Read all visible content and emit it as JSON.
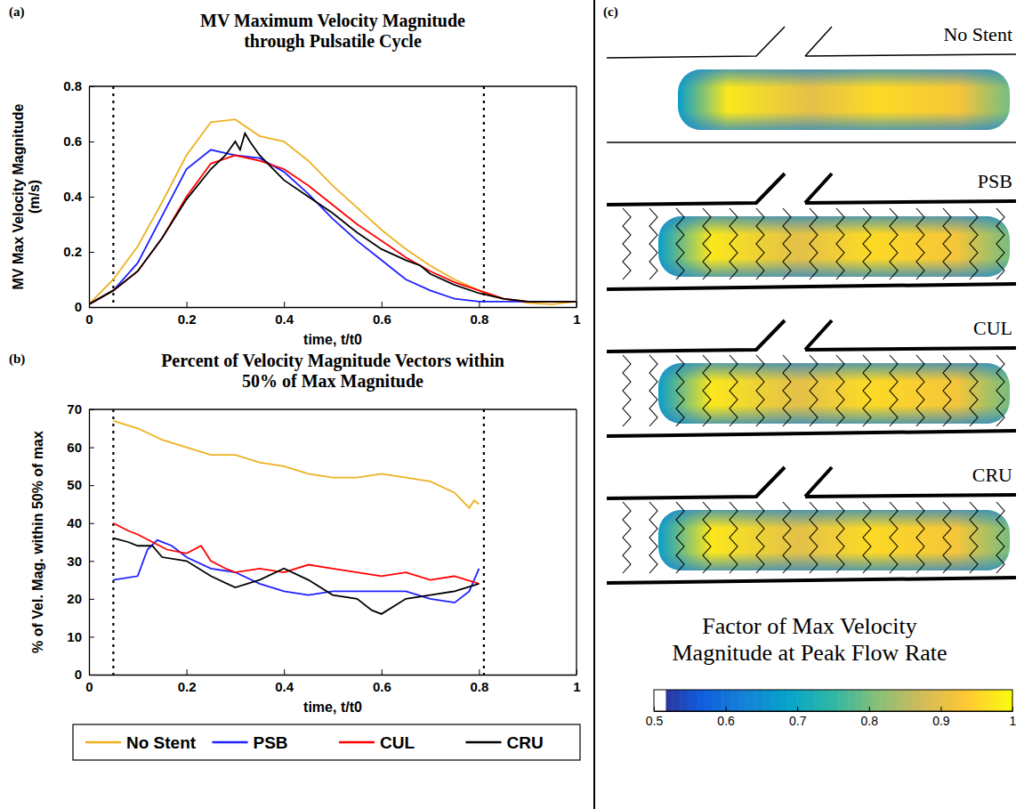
{
  "chart_data": [
    {
      "type": "line",
      "panel_label": "(a)",
      "title": "MV Maximum Velocity Magnitude through Pulsatile Cycle",
      "x_label": "time, t/t0",
      "y_label": "MV Max Velocity Magnitude (m/s)",
      "xlim": [
        0,
        1
      ],
      "xticks": [
        0,
        0.2,
        0.4,
        0.6,
        0.8,
        1
      ],
      "ylim": [
        0,
        0.8
      ],
      "yticks": [
        0,
        0.2,
        0.4,
        0.6,
        0.8
      ],
      "vlines": [
        0.05,
        0.81
      ],
      "legend": "bottom",
      "series": [
        {
          "name": "No Stent",
          "color": "#edb120",
          "x": [
            0,
            0.05,
            0.1,
            0.15,
            0.2,
            0.25,
            0.3,
            0.35,
            0.4,
            0.45,
            0.5,
            0.55,
            0.6,
            0.65,
            0.7,
            0.75,
            0.8,
            0.85,
            0.9,
            0.95,
            1
          ],
          "values": [
            0.01,
            0.1,
            0.22,
            0.38,
            0.55,
            0.67,
            0.68,
            0.62,
            0.6,
            0.53,
            0.44,
            0.36,
            0.28,
            0.21,
            0.15,
            0.1,
            0.06,
            0.03,
            0.015,
            0.01,
            0.02
          ]
        },
        {
          "name": "PSB",
          "color": "#1f1fff",
          "x": [
            0,
            0.05,
            0.1,
            0.15,
            0.2,
            0.25,
            0.3,
            0.35,
            0.4,
            0.45,
            0.5,
            0.55,
            0.6,
            0.65,
            0.7,
            0.75,
            0.8,
            0.85,
            0.9,
            0.95,
            1
          ],
          "values": [
            0.01,
            0.06,
            0.16,
            0.33,
            0.5,
            0.57,
            0.55,
            0.54,
            0.49,
            0.41,
            0.32,
            0.24,
            0.17,
            0.1,
            0.06,
            0.03,
            0.02,
            0.02,
            0.02,
            0.02,
            0.02
          ]
        },
        {
          "name": "CUL",
          "color": "#ff0000",
          "x": [
            0,
            0.05,
            0.1,
            0.15,
            0.2,
            0.25,
            0.3,
            0.35,
            0.4,
            0.45,
            0.5,
            0.55,
            0.6,
            0.65,
            0.7,
            0.75,
            0.8,
            0.85,
            0.9,
            0.95,
            1
          ],
          "values": [
            0.01,
            0.06,
            0.13,
            0.25,
            0.4,
            0.52,
            0.55,
            0.53,
            0.5,
            0.44,
            0.37,
            0.3,
            0.24,
            0.18,
            0.13,
            0.09,
            0.06,
            0.03,
            0.02,
            0.02,
            0.02
          ]
        },
        {
          "name": "CRU",
          "color": "#000000",
          "x": [
            0,
            0.05,
            0.1,
            0.15,
            0.2,
            0.25,
            0.28,
            0.3,
            0.31,
            0.32,
            0.33,
            0.35,
            0.4,
            0.45,
            0.5,
            0.55,
            0.6,
            0.65,
            0.68,
            0.7,
            0.75,
            0.8,
            0.85,
            0.9,
            0.95,
            1
          ],
          "values": [
            0.01,
            0.06,
            0.13,
            0.25,
            0.39,
            0.5,
            0.55,
            0.6,
            0.57,
            0.63,
            0.6,
            0.55,
            0.46,
            0.4,
            0.34,
            0.27,
            0.21,
            0.17,
            0.15,
            0.12,
            0.08,
            0.05,
            0.03,
            0.02,
            0.02,
            0.02
          ]
        }
      ]
    },
    {
      "type": "line",
      "panel_label": "(b)",
      "title": "Percent of Velocity Magnitude Vectors within 50% of Max Magnitude",
      "x_label": "time, t/t0",
      "y_label": "% of Vel. Mag. within 50% of max",
      "xlim": [
        0,
        1
      ],
      "xticks": [
        0,
        0.2,
        0.4,
        0.6,
        0.8,
        1
      ],
      "ylim": [
        0,
        70
      ],
      "yticks": [
        0,
        10,
        20,
        30,
        40,
        50,
        60,
        70
      ],
      "vlines": [
        0.05,
        0.81
      ],
      "series": [
        {
          "name": "No Stent",
          "color": "#edb120",
          "x": [
            0.05,
            0.1,
            0.15,
            0.2,
            0.25,
            0.3,
            0.35,
            0.4,
            0.45,
            0.5,
            0.55,
            0.6,
            0.65,
            0.7,
            0.75,
            0.78,
            0.79,
            0.8
          ],
          "values": [
            67,
            65,
            62,
            60,
            58,
            58,
            56,
            55,
            53,
            52,
            52,
            53,
            52,
            51,
            48,
            44,
            46,
            45
          ]
        },
        {
          "name": "PSB",
          "color": "#1f1fff",
          "x": [
            0.05,
            0.1,
            0.12,
            0.14,
            0.17,
            0.2,
            0.25,
            0.3,
            0.35,
            0.4,
            0.45,
            0.5,
            0.55,
            0.6,
            0.65,
            0.7,
            0.75,
            0.78,
            0.8
          ],
          "values": [
            25,
            26,
            33,
            35.5,
            34,
            31,
            28,
            27,
            24,
            22,
            21,
            22,
            22,
            22,
            22,
            20,
            19,
            22,
            28
          ]
        },
        {
          "name": "CUL",
          "color": "#ff0000",
          "x": [
            0.05,
            0.08,
            0.1,
            0.13,
            0.16,
            0.2,
            0.23,
            0.25,
            0.28,
            0.3,
            0.35,
            0.4,
            0.45,
            0.5,
            0.55,
            0.6,
            0.65,
            0.7,
            0.75,
            0.8
          ],
          "values": [
            40,
            38,
            37,
            35,
            33,
            32,
            34,
            30,
            28,
            27,
            28,
            27,
            29,
            28,
            27,
            26,
            27,
            25,
            26,
            24
          ]
        },
        {
          "name": "CRU",
          "color": "#000000",
          "x": [
            0.05,
            0.08,
            0.1,
            0.13,
            0.15,
            0.2,
            0.25,
            0.3,
            0.35,
            0.4,
            0.45,
            0.5,
            0.55,
            0.58,
            0.6,
            0.65,
            0.7,
            0.75,
            0.8
          ],
          "values": [
            36,
            35,
            34,
            34,
            31,
            30,
            26,
            23,
            25,
            28,
            25,
            21,
            20,
            17,
            16,
            20,
            21,
            22,
            24
          ]
        }
      ]
    },
    {
      "type": "image",
      "panel_label": "(c)",
      "labels": [
        "No Stent",
        "PSB",
        "CUL",
        "CRU"
      ],
      "colorbar": {
        "title": "Factor of Max Velocity Magnitude at Peak Flow Rate",
        "range": [
          0.5,
          1
        ],
        "ticks": [
          0.5,
          0.6,
          0.7,
          0.8,
          0.9,
          1
        ]
      }
    }
  ]
}
